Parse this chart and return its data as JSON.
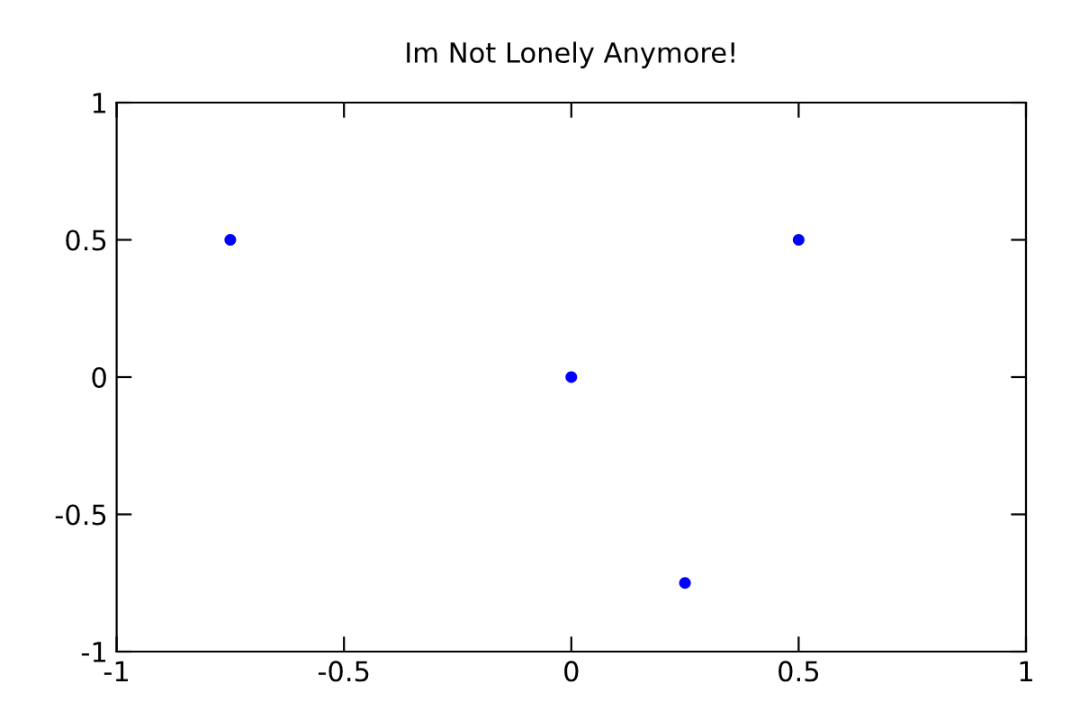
{
  "chart_data": {
    "type": "scatter",
    "title": "Im Not Lonely Anymore!",
    "x": [
      -0.75,
      0,
      0.25,
      0.5
    ],
    "series": [
      {
        "color": "#0000ff",
        "values": [
          0.5,
          0,
          -0.75,
          0.5
        ]
      }
    ],
    "xlim": [
      -1,
      1
    ],
    "xticks": [
      -1,
      -0.5,
      0,
      0.5,
      1
    ],
    "ylim": [
      -1,
      1
    ],
    "yticks": [
      -1,
      -0.5,
      0,
      0.5,
      1
    ],
    "grid": false,
    "legend": false,
    "marker": "circle"
  }
}
